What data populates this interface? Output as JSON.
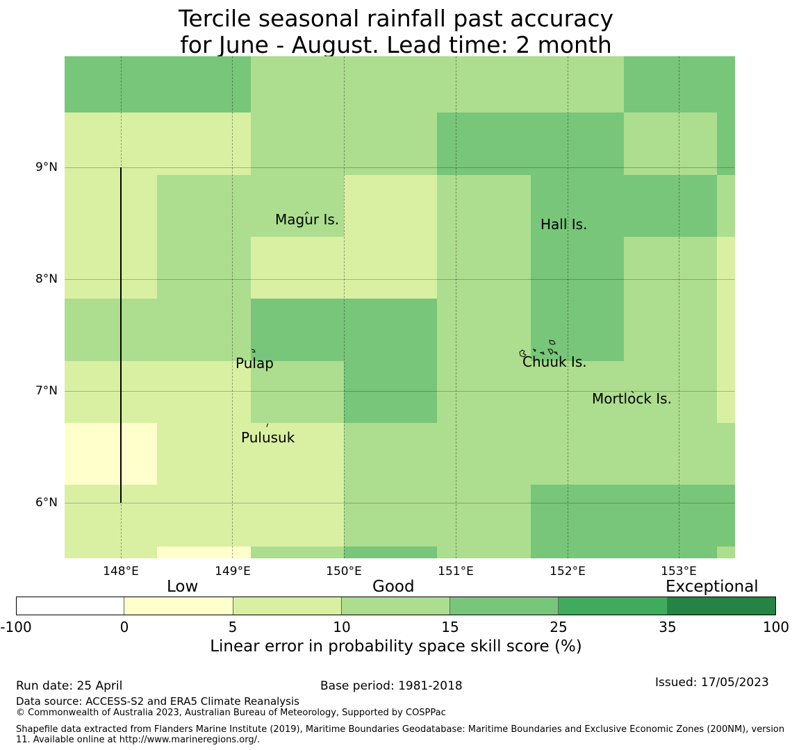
{
  "title": {
    "line1": "Tercile seasonal rainfall past accuracy",
    "line2": "for June - August. Lead time: 2 month"
  },
  "map": {
    "lat_ticks": [
      "9°N",
      "8°N",
      "7°N",
      "6°N"
    ],
    "lon_ticks": [
      "148°E",
      "149°E",
      "150°E",
      "151°E",
      "152°E",
      "153°E"
    ],
    "places": [
      {
        "name": "Magur Is."
      },
      {
        "name": "Hall Is."
      },
      {
        "name": "Pulap"
      },
      {
        "name": "Chuuk Is."
      },
      {
        "name": "Mortlock Is."
      },
      {
        "name": "Pulusuk"
      }
    ],
    "skill_grid": [
      [
        "15-25",
        "15-25",
        "10-15",
        "10-15",
        "10-15",
        "10-15",
        "15-25",
        "15-25"
      ],
      [
        "5-10",
        "5-10",
        "10-15",
        "10-15",
        "15-25",
        "15-25",
        "10-15",
        "15-25"
      ],
      [
        "5-10",
        "10-15",
        "10-15",
        "5-10",
        "10-15",
        "15-25",
        "15-25",
        "10-15"
      ],
      [
        "5-10",
        "10-15",
        "5-10",
        "5-10",
        "10-15",
        "15-25",
        "10-15",
        "5-10"
      ],
      [
        "10-15",
        "10-15",
        "15-25",
        "15-25",
        "10-15",
        "15-25",
        "10-15",
        "5-10"
      ],
      [
        "5-10",
        "5-10",
        "10-15",
        "15-25",
        "10-15",
        "10-15",
        "10-15",
        "5-10"
      ],
      [
        "0-5",
        "5-10",
        "5-10",
        "10-15",
        "10-15",
        "10-15",
        "10-15",
        "10-15"
      ],
      [
        "5-10",
        "5-10",
        "5-10",
        "10-15",
        "10-15",
        "15-25",
        "15-25",
        "15-25"
      ],
      [
        "5-10",
        "0-5",
        "10-15",
        "15-25",
        "10-15",
        "15-25",
        "15-25",
        "10-15"
      ]
    ]
  },
  "colorbar": {
    "categories": [
      "Low",
      "Good",
      "Exceptional"
    ],
    "ticks": [
      "-100",
      "0",
      "5",
      "10",
      "15",
      "25",
      "35",
      "100"
    ],
    "colors": [
      "#ffffff",
      "#ffffcc",
      "#d9f0a3",
      "#addd8e",
      "#78c679",
      "#41ab5d",
      "#238443"
    ],
    "label": "Linear error in probability space skill score (%)"
  },
  "footer": {
    "run_date": "Run date: 25 April",
    "base_period": "Base period: 1981-2018",
    "issued": "Issued: 17/05/2023",
    "data_source": "Data source: ACCESS-S2 and ERA5 Climate Reanalysis",
    "copyright": "© Commonwealth of Australia 2023, Australian Bureau of Meteorology, Supported by COSPPac",
    "shapefile": "Shapefile data extracted from Flanders Marine Institute (2019), Maritime Boundaries Geodatabase: Maritime Boundaries and Exclusive Economic Zones (200NM), version 11. Available online at http://www.marineregions.org/."
  }
}
